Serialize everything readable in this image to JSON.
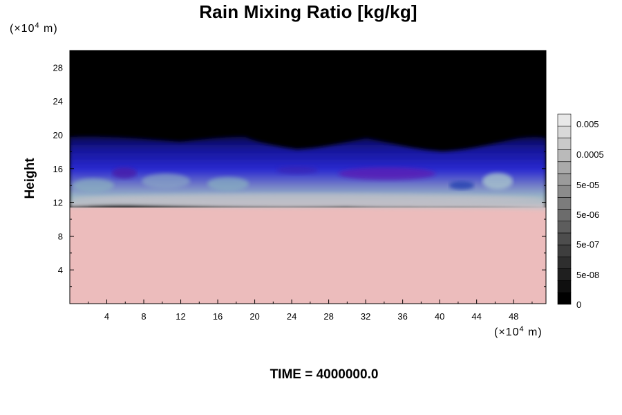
{
  "chart_data": {
    "type": "heatmap",
    "title": "Rain Mixing Ratio [kg/kg]",
    "ylabel": "Height",
    "xlabel": "",
    "x_unit": {
      "prefix": "(×10",
      "exp": "4",
      "suffix": " m)"
    },
    "y_unit": {
      "prefix": "(×10",
      "exp": "4",
      "suffix": " m)"
    },
    "xlim": [
      0,
      51.5
    ],
    "ylim": [
      0,
      30
    ],
    "x_ticks": [
      4,
      8,
      12,
      16,
      20,
      24,
      28,
      32,
      36,
      40,
      44,
      48
    ],
    "y_ticks": [
      4,
      8,
      12,
      16,
      20,
      24,
      28
    ],
    "colorbar": {
      "labels": [
        "0.005",
        "0.0005",
        "5e-05",
        "5e-06",
        "5e-07",
        "5e-08",
        "0"
      ],
      "levels": 16,
      "placement": "right"
    },
    "layers": [
      {
        "name": "lower-band",
        "from": 0,
        "to": 11.5,
        "color": "#ecbcbc"
      },
      {
        "name": "upper-band",
        "from": 19.5,
        "to": 30,
        "color": "#000000"
      }
    ],
    "time_label": "TIME = 4000000.0"
  },
  "colors": {
    "background": "#ffffff",
    "lower": "#ecbcbc",
    "upper": "#000000",
    "deep_blue": "#101080",
    "blue": "#2828c8",
    "violet": "#5a1ab4",
    "teal": "#9cb8c4"
  }
}
